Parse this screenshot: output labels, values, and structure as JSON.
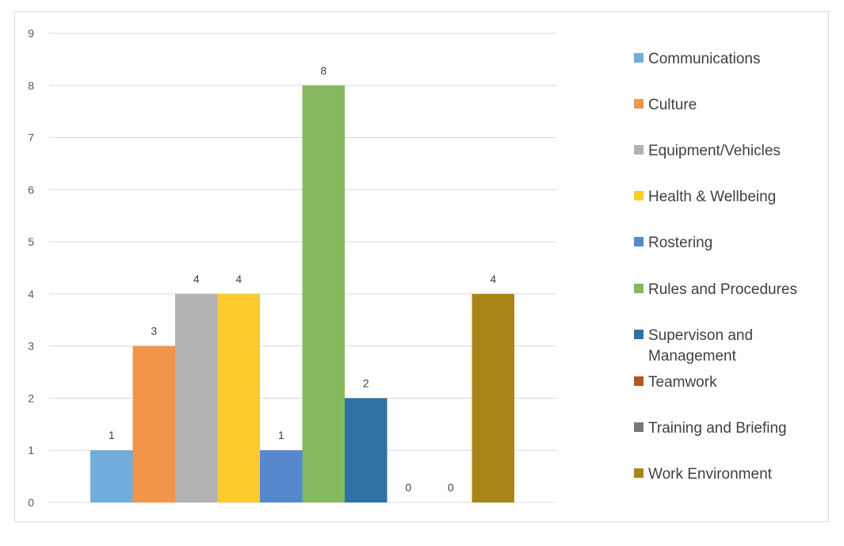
{
  "chart_data": {
    "type": "bar",
    "title": "",
    "xlabel": "",
    "ylabel": "",
    "ylim": [
      0,
      9
    ],
    "yticks": [
      0,
      1,
      2,
      3,
      4,
      5,
      6,
      7,
      8,
      9
    ],
    "grid": true,
    "legend_position": "right",
    "series": [
      {
        "name": "Communications",
        "value": 1,
        "label": "1",
        "color": "#70ADDC"
      },
      {
        "name": "Culture",
        "value": 3,
        "label": "3",
        "color": "#F0954A"
      },
      {
        "name": "Equipment/Vehicles",
        "value": 4,
        "label": "4",
        "color": "#B3B3B3"
      },
      {
        "name": "Health & Wellbeing",
        "value": 4,
        "label": "4",
        "color": "#FFCA2E"
      },
      {
        "name": "Rostering",
        "value": 1,
        "label": "1",
        "color": "#5588CC"
      },
      {
        "name": "Rules and Procedures",
        "value": 8,
        "label": "8",
        "color": "#84B95E"
      },
      {
        "name": "Supervison and Management",
        "value": 2,
        "label": "2",
        "color": "#2E73A3"
      },
      {
        "name": "Teamwork",
        "value": 0,
        "label": "0",
        "color": "#B3591E"
      },
      {
        "name": "Training and Briefing",
        "value": 0,
        "label": "0",
        "color": "#777777"
      },
      {
        "name": "Work Environment",
        "value": 4,
        "label": "4",
        "color": "#AA861A"
      }
    ]
  }
}
